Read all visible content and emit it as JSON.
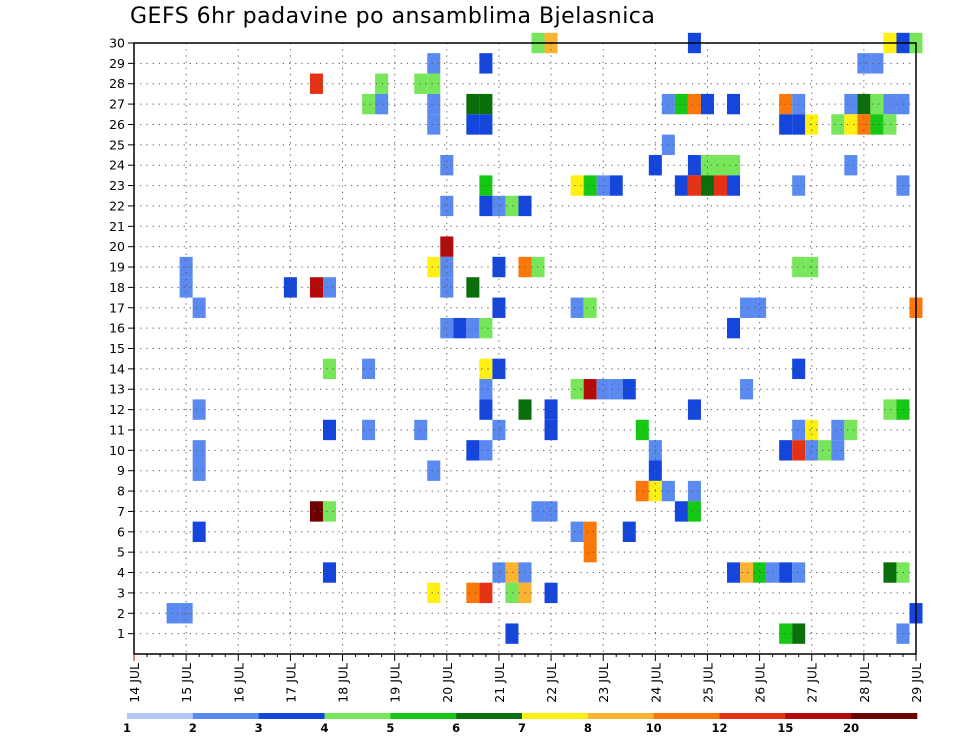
{
  "title": "GEFS 6hr padavine po ansamblima Bjelasnica",
  "chart_data": {
    "type": "heatmap",
    "title": "GEFS 6hr padavine po ansamblima Bjelasnica",
    "x_ticks": [
      "14 JUL",
      "15 JUL",
      "16 JUL",
      "17 JUL",
      "18 JUL",
      "19 JUL",
      "20 JUL",
      "21 JUL",
      "22 JUL",
      "23 JUL",
      "24 JUL",
      "25 JUL",
      "26 JUL",
      "27 JUL",
      "28 JUL",
      "29 JUL"
    ],
    "y_ticks": [
      1,
      2,
      3,
      4,
      5,
      6,
      7,
      8,
      9,
      10,
      11,
      12,
      13,
      14,
      15,
      16,
      17,
      18,
      19,
      20,
      21,
      22,
      23,
      24,
      25,
      26,
      27,
      28,
      29,
      30
    ],
    "xlim": [
      "2025-07-14 00:00",
      "2025-07-29 00:00"
    ],
    "ylim": [
      0,
      30
    ],
    "grid": "dotted",
    "colorbar": {
      "labels": [
        "1",
        "2",
        "3",
        "4",
        "5",
        "6",
        "7",
        "8",
        "10",
        "12",
        "15",
        "20"
      ],
      "colors": [
        "#b4c8f8",
        "#5a8af0",
        "#1445dc",
        "#78e65a",
        "#14c814",
        "#0a6e0a",
        "#fff014",
        "#fab432",
        "#fa780a",
        "#e63214",
        "#b40a0a",
        "#6e0000"
      ]
    },
    "cells": [
      {
        "m": 30,
        "t": "2025-07-21 18:00",
        "v": 3
      },
      {
        "m": 30,
        "t": "2025-07-22 00:00",
        "v": 7
      },
      {
        "m": 30,
        "t": "2025-07-24 18:00",
        "v": 2
      },
      {
        "m": 30,
        "t": "2025-07-28 12:00",
        "v": 6
      },
      {
        "m": 30,
        "t": "2025-07-28 18:00",
        "v": 2
      },
      {
        "m": 30,
        "t": "2025-07-29 00:00",
        "v": 3
      },
      {
        "m": 29,
        "t": "2025-07-19 18:00",
        "v": 1
      },
      {
        "m": 29,
        "t": "2025-07-20 18:00",
        "v": 2
      },
      {
        "m": 29,
        "t": "2025-07-28 00:00",
        "v": 1
      },
      {
        "m": 29,
        "t": "2025-07-28 06:00",
        "v": 1
      },
      {
        "m": 28,
        "t": "2025-07-17 12:00",
        "v": 9
      },
      {
        "m": 28,
        "t": "2025-07-18 18:00",
        "v": 3
      },
      {
        "m": 28,
        "t": "2025-07-19 12:00",
        "v": 3
      },
      {
        "m": 28,
        "t": "2025-07-19 18:00",
        "v": 3
      },
      {
        "m": 27,
        "t": "2025-07-18 12:00",
        "v": 3
      },
      {
        "m": 27,
        "t": "2025-07-18 18:00",
        "v": 1
      },
      {
        "m": 27,
        "t": "2025-07-19 18:00",
        "v": 1
      },
      {
        "m": 27,
        "t": "2025-07-20 12:00",
        "v": 5
      },
      {
        "m": 27,
        "t": "2025-07-20 18:00",
        "v": 5
      },
      {
        "m": 27,
        "t": "2025-07-24 06:00",
        "v": 1
      },
      {
        "m": 27,
        "t": "2025-07-24 12:00",
        "v": 4
      },
      {
        "m": 27,
        "t": "2025-07-24 18:00",
        "v": 8
      },
      {
        "m": 27,
        "t": "2025-07-25 00:00",
        "v": 2
      },
      {
        "m": 27,
        "t": "2025-07-25 12:00",
        "v": 2
      },
      {
        "m": 27,
        "t": "2025-07-26 12:00",
        "v": 8
      },
      {
        "m": 27,
        "t": "2025-07-26 18:00",
        "v": 1
      },
      {
        "m": 27,
        "t": "2025-07-27 18:00",
        "v": 1
      },
      {
        "m": 27,
        "t": "2025-07-28 00:00",
        "v": 5
      },
      {
        "m": 27,
        "t": "2025-07-28 06:00",
        "v": 3
      },
      {
        "m": 27,
        "t": "2025-07-28 12:00",
        "v": 1
      },
      {
        "m": 27,
        "t": "2025-07-28 18:00",
        "v": 1
      },
      {
        "m": 26,
        "t": "2025-07-19 18:00",
        "v": 1
      },
      {
        "m": 26,
        "t": "2025-07-20 12:00",
        "v": 2
      },
      {
        "m": 26,
        "t": "2025-07-20 18:00",
        "v": 2
      },
      {
        "m": 26,
        "t": "2025-07-26 12:00",
        "v": 2
      },
      {
        "m": 26,
        "t": "2025-07-26 18:00",
        "v": 2
      },
      {
        "m": 26,
        "t": "2025-07-27 00:00",
        "v": 6
      },
      {
        "m": 26,
        "t": "2025-07-27 12:00",
        "v": 3
      },
      {
        "m": 26,
        "t": "2025-07-27 18:00",
        "v": 6
      },
      {
        "m": 26,
        "t": "2025-07-28 00:00",
        "v": 8
      },
      {
        "m": 26,
        "t": "2025-07-28 06:00",
        "v": 4
      },
      {
        "m": 26,
        "t": "2025-07-28 12:00",
        "v": 3
      },
      {
        "m": 25,
        "t": "2025-07-24 06:00",
        "v": 1
      },
      {
        "m": 24,
        "t": "2025-07-20 00:00",
        "v": 1
      },
      {
        "m": 24,
        "t": "2025-07-24 00:00",
        "v": 2
      },
      {
        "m": 24,
        "t": "2025-07-24 18:00",
        "v": 2
      },
      {
        "m": 24,
        "t": "2025-07-25 00:00",
        "v": 3
      },
      {
        "m": 24,
        "t": "2025-07-25 06:00",
        "v": 3
      },
      {
        "m": 24,
        "t": "2025-07-25 12:00",
        "v": 3
      },
      {
        "m": 24,
        "t": "2025-07-27 18:00",
        "v": 1
      },
      {
        "m": 23,
        "t": "2025-07-20 18:00",
        "v": 4
      },
      {
        "m": 23,
        "t": "2025-07-22 12:00",
        "v": 6
      },
      {
        "m": 23,
        "t": "2025-07-22 18:00",
        "v": 4
      },
      {
        "m": 23,
        "t": "2025-07-23 00:00",
        "v": 1
      },
      {
        "m": 23,
        "t": "2025-07-23 06:00",
        "v": 2
      },
      {
        "m": 23,
        "t": "2025-07-24 12:00",
        "v": 2
      },
      {
        "m": 23,
        "t": "2025-07-24 18:00",
        "v": 9
      },
      {
        "m": 23,
        "t": "2025-07-25 00:00",
        "v": 5
      },
      {
        "m": 23,
        "t": "2025-07-25 06:00",
        "v": 9
      },
      {
        "m": 23,
        "t": "2025-07-25 12:00",
        "v": 2
      },
      {
        "m": 23,
        "t": "2025-07-26 18:00",
        "v": 1
      },
      {
        "m": 23,
        "t": "2025-07-28 18:00",
        "v": 1
      },
      {
        "m": 22,
        "t": "2025-07-20 00:00",
        "v": 1
      },
      {
        "m": 22,
        "t": "2025-07-20 18:00",
        "v": 2
      },
      {
        "m": 22,
        "t": "2025-07-21 00:00",
        "v": 1
      },
      {
        "m": 22,
        "t": "2025-07-21 06:00",
        "v": 3
      },
      {
        "m": 22,
        "t": "2025-07-21 12:00",
        "v": 2
      },
      {
        "m": 20,
        "t": "2025-07-20 00:00",
        "v": 10
      },
      {
        "m": 19,
        "t": "2025-07-15 00:00",
        "v": 1
      },
      {
        "m": 19,
        "t": "2025-07-19 18:00",
        "v": 6
      },
      {
        "m": 19,
        "t": "2025-07-20 00:00",
        "v": 1
      },
      {
        "m": 19,
        "t": "2025-07-21 00:00",
        "v": 2
      },
      {
        "m": 19,
        "t": "2025-07-21 12:00",
        "v": 8
      },
      {
        "m": 19,
        "t": "2025-07-21 18:00",
        "v": 3
      },
      {
        "m": 19,
        "t": "2025-07-26 18:00",
        "v": 3
      },
      {
        "m": 19,
        "t": "2025-07-27 00:00",
        "v": 3
      },
      {
        "m": 18,
        "t": "2025-07-15 00:00",
        "v": 1
      },
      {
        "m": 18,
        "t": "2025-07-17 00:00",
        "v": 2
      },
      {
        "m": 18,
        "t": "2025-07-17 12:00",
        "v": 10
      },
      {
        "m": 18,
        "t": "2025-07-17 18:00",
        "v": 1
      },
      {
        "m": 18,
        "t": "2025-07-20 00:00",
        "v": 1
      },
      {
        "m": 18,
        "t": "2025-07-20 12:00",
        "v": 5
      },
      {
        "m": 17,
        "t": "2025-07-15 06:00",
        "v": 1
      },
      {
        "m": 17,
        "t": "2025-07-21 00:00",
        "v": 2
      },
      {
        "m": 17,
        "t": "2025-07-22 12:00",
        "v": 1
      },
      {
        "m": 17,
        "t": "2025-07-22 18:00",
        "v": 3
      },
      {
        "m": 17,
        "t": "2025-07-25 18:00",
        "v": 1
      },
      {
        "m": 17,
        "t": "2025-07-26 00:00",
        "v": 1
      },
      {
        "m": 17,
        "t": "2025-07-29 00:00",
        "v": 8
      },
      {
        "m": 16,
        "t": "2025-07-20 00:00",
        "v": 1
      },
      {
        "m": 16,
        "t": "2025-07-20 06:00",
        "v": 2
      },
      {
        "m": 16,
        "t": "2025-07-20 12:00",
        "v": 1
      },
      {
        "m": 16,
        "t": "2025-07-20 18:00",
        "v": 3
      },
      {
        "m": 16,
        "t": "2025-07-25 12:00",
        "v": 2
      },
      {
        "m": 14,
        "t": "2025-07-17 18:00",
        "v": 3
      },
      {
        "m": 14,
        "t": "2025-07-18 12:00",
        "v": 1
      },
      {
        "m": 14,
        "t": "2025-07-20 18:00",
        "v": 6
      },
      {
        "m": 14,
        "t": "2025-07-21 00:00",
        "v": 2
      },
      {
        "m": 14,
        "t": "2025-07-26 18:00",
        "v": 2
      },
      {
        "m": 13,
        "t": "2025-07-20 18:00",
        "v": 1
      },
      {
        "m": 13,
        "t": "2025-07-22 12:00",
        "v": 3
      },
      {
        "m": 13,
        "t": "2025-07-22 18:00",
        "v": 10
      },
      {
        "m": 13,
        "t": "2025-07-23 00:00",
        "v": 1
      },
      {
        "m": 13,
        "t": "2025-07-23 06:00",
        "v": 1
      },
      {
        "m": 13,
        "t": "2025-07-23 12:00",
        "v": 2
      },
      {
        "m": 13,
        "t": "2025-07-25 18:00",
        "v": 1
      },
      {
        "m": 12,
        "t": "2025-07-15 06:00",
        "v": 1
      },
      {
        "m": 12,
        "t": "2025-07-20 18:00",
        "v": 2
      },
      {
        "m": 12,
        "t": "2025-07-21 12:00",
        "v": 5
      },
      {
        "m": 12,
        "t": "2025-07-22 00:00",
        "v": 2
      },
      {
        "m": 12,
        "t": "2025-07-24 18:00",
        "v": 2
      },
      {
        "m": 12,
        "t": "2025-07-28 12:00",
        "v": 3
      },
      {
        "m": 12,
        "t": "2025-07-28 18:00",
        "v": 4
      },
      {
        "m": 11,
        "t": "2025-07-17 18:00",
        "v": 2
      },
      {
        "m": 11,
        "t": "2025-07-18 12:00",
        "v": 1
      },
      {
        "m": 11,
        "t": "2025-07-19 12:00",
        "v": 1
      },
      {
        "m": 11,
        "t": "2025-07-21 00:00",
        "v": 1
      },
      {
        "m": 11,
        "t": "2025-07-22 00:00",
        "v": 2
      },
      {
        "m": 11,
        "t": "2025-07-23 18:00",
        "v": 4
      },
      {
        "m": 11,
        "t": "2025-07-26 18:00",
        "v": 1
      },
      {
        "m": 11,
        "t": "2025-07-27 00:00",
        "v": 6
      },
      {
        "m": 11,
        "t": "2025-07-27 12:00",
        "v": 1
      },
      {
        "m": 11,
        "t": "2025-07-27 18:00",
        "v": 3
      },
      {
        "m": 10,
        "t": "2025-07-15 06:00",
        "v": 1
      },
      {
        "m": 10,
        "t": "2025-07-20 12:00",
        "v": 2
      },
      {
        "m": 10,
        "t": "2025-07-20 18:00",
        "v": 1
      },
      {
        "m": 10,
        "t": "2025-07-24 00:00",
        "v": 1
      },
      {
        "m": 10,
        "t": "2025-07-26 12:00",
        "v": 2
      },
      {
        "m": 10,
        "t": "2025-07-26 18:00",
        "v": 9
      },
      {
        "m": 10,
        "t": "2025-07-27 00:00",
        "v": 1
      },
      {
        "m": 10,
        "t": "2025-07-27 06:00",
        "v": 3
      },
      {
        "m": 10,
        "t": "2025-07-27 12:00",
        "v": 1
      },
      {
        "m": 9,
        "t": "2025-07-15 06:00",
        "v": 1
      },
      {
        "m": 9,
        "t": "2025-07-19 18:00",
        "v": 1
      },
      {
        "m": 9,
        "t": "2025-07-24 00:00",
        "v": 2
      },
      {
        "m": 8,
        "t": "2025-07-23 18:00",
        "v": 8
      },
      {
        "m": 8,
        "t": "2025-07-24 00:00",
        "v": 6
      },
      {
        "m": 8,
        "t": "2025-07-24 06:00",
        "v": 1
      },
      {
        "m": 8,
        "t": "2025-07-24 18:00",
        "v": 1
      },
      {
        "m": 7,
        "t": "2025-07-17 12:00",
        "v": 11
      },
      {
        "m": 7,
        "t": "2025-07-17 18:00",
        "v": 3
      },
      {
        "m": 7,
        "t": "2025-07-21 18:00",
        "v": 1
      },
      {
        "m": 7,
        "t": "2025-07-22 00:00",
        "v": 1
      },
      {
        "m": 7,
        "t": "2025-07-24 12:00",
        "v": 2
      },
      {
        "m": 7,
        "t": "2025-07-24 18:00",
        "v": 4
      },
      {
        "m": 6,
        "t": "2025-07-15 06:00",
        "v": 2
      },
      {
        "m": 6,
        "t": "2025-07-22 12:00",
        "v": 1
      },
      {
        "m": 6,
        "t": "2025-07-22 18:00",
        "v": 8
      },
      {
        "m": 6,
        "t": "2025-07-23 12:00",
        "v": 2
      },
      {
        "m": 5,
        "t": "2025-07-22 18:00",
        "v": 8
      },
      {
        "m": 4,
        "t": "2025-07-17 18:00",
        "v": 2
      },
      {
        "m": 4,
        "t": "2025-07-21 00:00",
        "v": 1
      },
      {
        "m": 4,
        "t": "2025-07-21 06:00",
        "v": 7
      },
      {
        "m": 4,
        "t": "2025-07-21 12:00",
        "v": 1
      },
      {
        "m": 4,
        "t": "2025-07-25 12:00",
        "v": 2
      },
      {
        "m": 4,
        "t": "2025-07-25 18:00",
        "v": 7
      },
      {
        "m": 4,
        "t": "2025-07-26 00:00",
        "v": 4
      },
      {
        "m": 4,
        "t": "2025-07-26 06:00",
        "v": 1
      },
      {
        "m": 4,
        "t": "2025-07-26 12:00",
        "v": 2
      },
      {
        "m": 4,
        "t": "2025-07-26 18:00",
        "v": 1
      },
      {
        "m": 4,
        "t": "2025-07-28 12:00",
        "v": 5
      },
      {
        "m": 4,
        "t": "2025-07-28 18:00",
        "v": 3
      },
      {
        "m": 3,
        "t": "2025-07-19 18:00",
        "v": 6
      },
      {
        "m": 3,
        "t": "2025-07-20 12:00",
        "v": 8
      },
      {
        "m": 3,
        "t": "2025-07-20 18:00",
        "v": 9
      },
      {
        "m": 3,
        "t": "2025-07-21 06:00",
        "v": 3
      },
      {
        "m": 3,
        "t": "2025-07-21 12:00",
        "v": 7
      },
      {
        "m": 3,
        "t": "2025-07-22 00:00",
        "v": 2
      },
      {
        "m": 2,
        "t": "2025-07-14 18:00",
        "v": 1
      },
      {
        "m": 2,
        "t": "2025-07-15 00:00",
        "v": 1
      },
      {
        "m": 2,
        "t": "2025-07-29 00:00",
        "v": 2
      },
      {
        "m": 1,
        "t": "2025-07-21 06:00",
        "v": 2
      },
      {
        "m": 1,
        "t": "2025-07-26 12:00",
        "v": 4
      },
      {
        "m": 1,
        "t": "2025-07-26 18:00",
        "v": 5
      },
      {
        "m": 1,
        "t": "2025-07-28 18:00",
        "v": 1
      }
    ]
  }
}
